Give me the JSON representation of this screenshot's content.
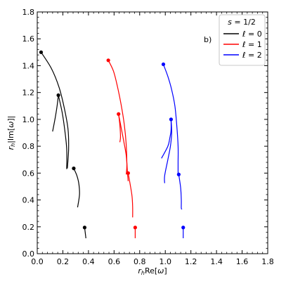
{
  "chart_data": {
    "type": "line",
    "panel_label": "b)",
    "xlabel": "r_h Re[ω]",
    "ylabel": "r_h |Im[ω]|",
    "xlim": [
      0.0,
      1.8
    ],
    "ylim": [
      0.0,
      1.8
    ],
    "xticks": [
      0.0,
      0.2,
      0.4,
      0.6,
      0.8,
      1.0,
      1.2,
      1.4,
      1.6,
      1.8
    ],
    "yticks": [
      0.0,
      0.2,
      0.4,
      0.6,
      0.8,
      1.0,
      1.2,
      1.4,
      1.6,
      1.8
    ],
    "tick_labels": [
      "0.0",
      "0.2",
      "0.4",
      "0.6",
      "0.8",
      "1.0",
      "1.2",
      "1.4",
      "1.6",
      "1.8"
    ],
    "grid": false,
    "legend": {
      "title": "s = 1/2",
      "position": "top-right",
      "entries": [
        "ℓ = 0",
        "ℓ = 1",
        "ℓ = 2"
      ]
    },
    "series": [
      {
        "name": "ℓ = 0",
        "color": "#000000",
        "curves": [
          [
            [
              0.37,
              0.195
            ],
            [
              0.375,
              0.155
            ],
            [
              0.38,
              0.115
            ]
          ],
          [
            [
              0.285,
              0.635
            ],
            [
              0.31,
              0.58
            ],
            [
              0.325,
              0.52
            ],
            [
              0.33,
              0.44
            ],
            [
              0.315,
              0.345
            ]
          ],
          [
            [
              0.165,
              1.18
            ],
            [
              0.195,
              1.05
            ],
            [
              0.215,
              0.92
            ],
            [
              0.23,
              0.78
            ],
            [
              0.23,
              0.63
            ]
          ],
          [
            [
              0.03,
              1.5
            ],
            [
              0.11,
              1.38
            ],
            [
              0.17,
              1.24
            ],
            [
              0.21,
              1.09
            ],
            [
              0.24,
              0.93
            ],
            [
              0.245,
              0.78
            ],
            [
              0.235,
              0.635
            ]
          ],
          [
            [
              0.165,
              1.18
            ],
            [
              0.155,
              1.1
            ],
            [
              0.14,
              1.01
            ],
            [
              0.12,
              0.91
            ]
          ]
        ],
        "markers": [
          [
            0.03,
            1.5
          ],
          [
            0.165,
            1.18
          ],
          [
            0.285,
            0.635
          ],
          [
            0.37,
            0.195
          ]
        ]
      },
      {
        "name": "ℓ = 1",
        "color": "#ff0000",
        "curves": [
          [
            [
              0.765,
              0.195
            ],
            [
              0.765,
              0.155
            ],
            [
              0.765,
              0.115
            ]
          ],
          [
            [
              0.71,
              0.6
            ],
            [
              0.725,
              0.52
            ],
            [
              0.74,
              0.43
            ],
            [
              0.745,
              0.35
            ],
            [
              0.745,
              0.27
            ]
          ],
          [
            [
              0.635,
              1.04
            ],
            [
              0.655,
              0.94
            ],
            [
              0.675,
              0.84
            ],
            [
              0.695,
              0.73
            ],
            [
              0.705,
              0.6
            ],
            [
              0.71,
              0.54
            ]
          ],
          [
            [
              0.555,
              1.44
            ],
            [
              0.595,
              1.36
            ],
            [
              0.625,
              1.25
            ],
            [
              0.655,
              1.11
            ],
            [
              0.68,
              0.96
            ],
            [
              0.695,
              0.81
            ],
            [
              0.7,
              0.66
            ],
            [
              0.695,
              0.59
            ]
          ],
          [
            [
              0.635,
              1.04
            ],
            [
              0.645,
              0.96
            ],
            [
              0.65,
              0.87
            ],
            [
              0.645,
              0.83
            ]
          ]
        ],
        "markers": [
          [
            0.555,
            1.44
          ],
          [
            0.635,
            1.04
          ],
          [
            0.71,
            0.6
          ],
          [
            0.765,
            0.195
          ]
        ]
      },
      {
        "name": "ℓ = 2",
        "color": "#0000ff",
        "curves": [
          [
            [
              1.14,
              0.195
            ],
            [
              1.14,
              0.155
            ],
            [
              1.14,
              0.115
            ]
          ],
          [
            [
              1.105,
              0.59
            ],
            [
              1.12,
              0.49
            ],
            [
              1.125,
              0.4
            ],
            [
              1.125,
              0.34
            ],
            [
              1.13,
              0.33
            ]
          ],
          [
            [
              1.045,
              1.0
            ],
            [
              1.05,
              0.9
            ],
            [
              1.04,
              0.8
            ],
            [
              1.02,
              0.7
            ],
            [
              0.995,
              0.58
            ],
            [
              0.995,
              0.525
            ]
          ],
          [
            [
              0.985,
              1.41
            ],
            [
              1.02,
              1.32
            ],
            [
              1.05,
              1.22
            ],
            [
              1.075,
              1.1
            ],
            [
              1.09,
              0.95
            ],
            [
              1.1,
              0.8
            ],
            [
              1.1,
              0.68
            ],
            [
              1.1,
              0.59
            ]
          ],
          [
            [
              1.045,
              1.0
            ],
            [
              1.045,
              0.92
            ],
            [
              1.035,
              0.86
            ],
            [
              1.02,
              0.8
            ],
            [
              0.97,
              0.71
            ]
          ]
        ],
        "markers": [
          [
            0.985,
            1.41
          ],
          [
            1.045,
            1.0
          ],
          [
            1.105,
            0.59
          ],
          [
            1.14,
            0.195
          ]
        ]
      }
    ]
  }
}
